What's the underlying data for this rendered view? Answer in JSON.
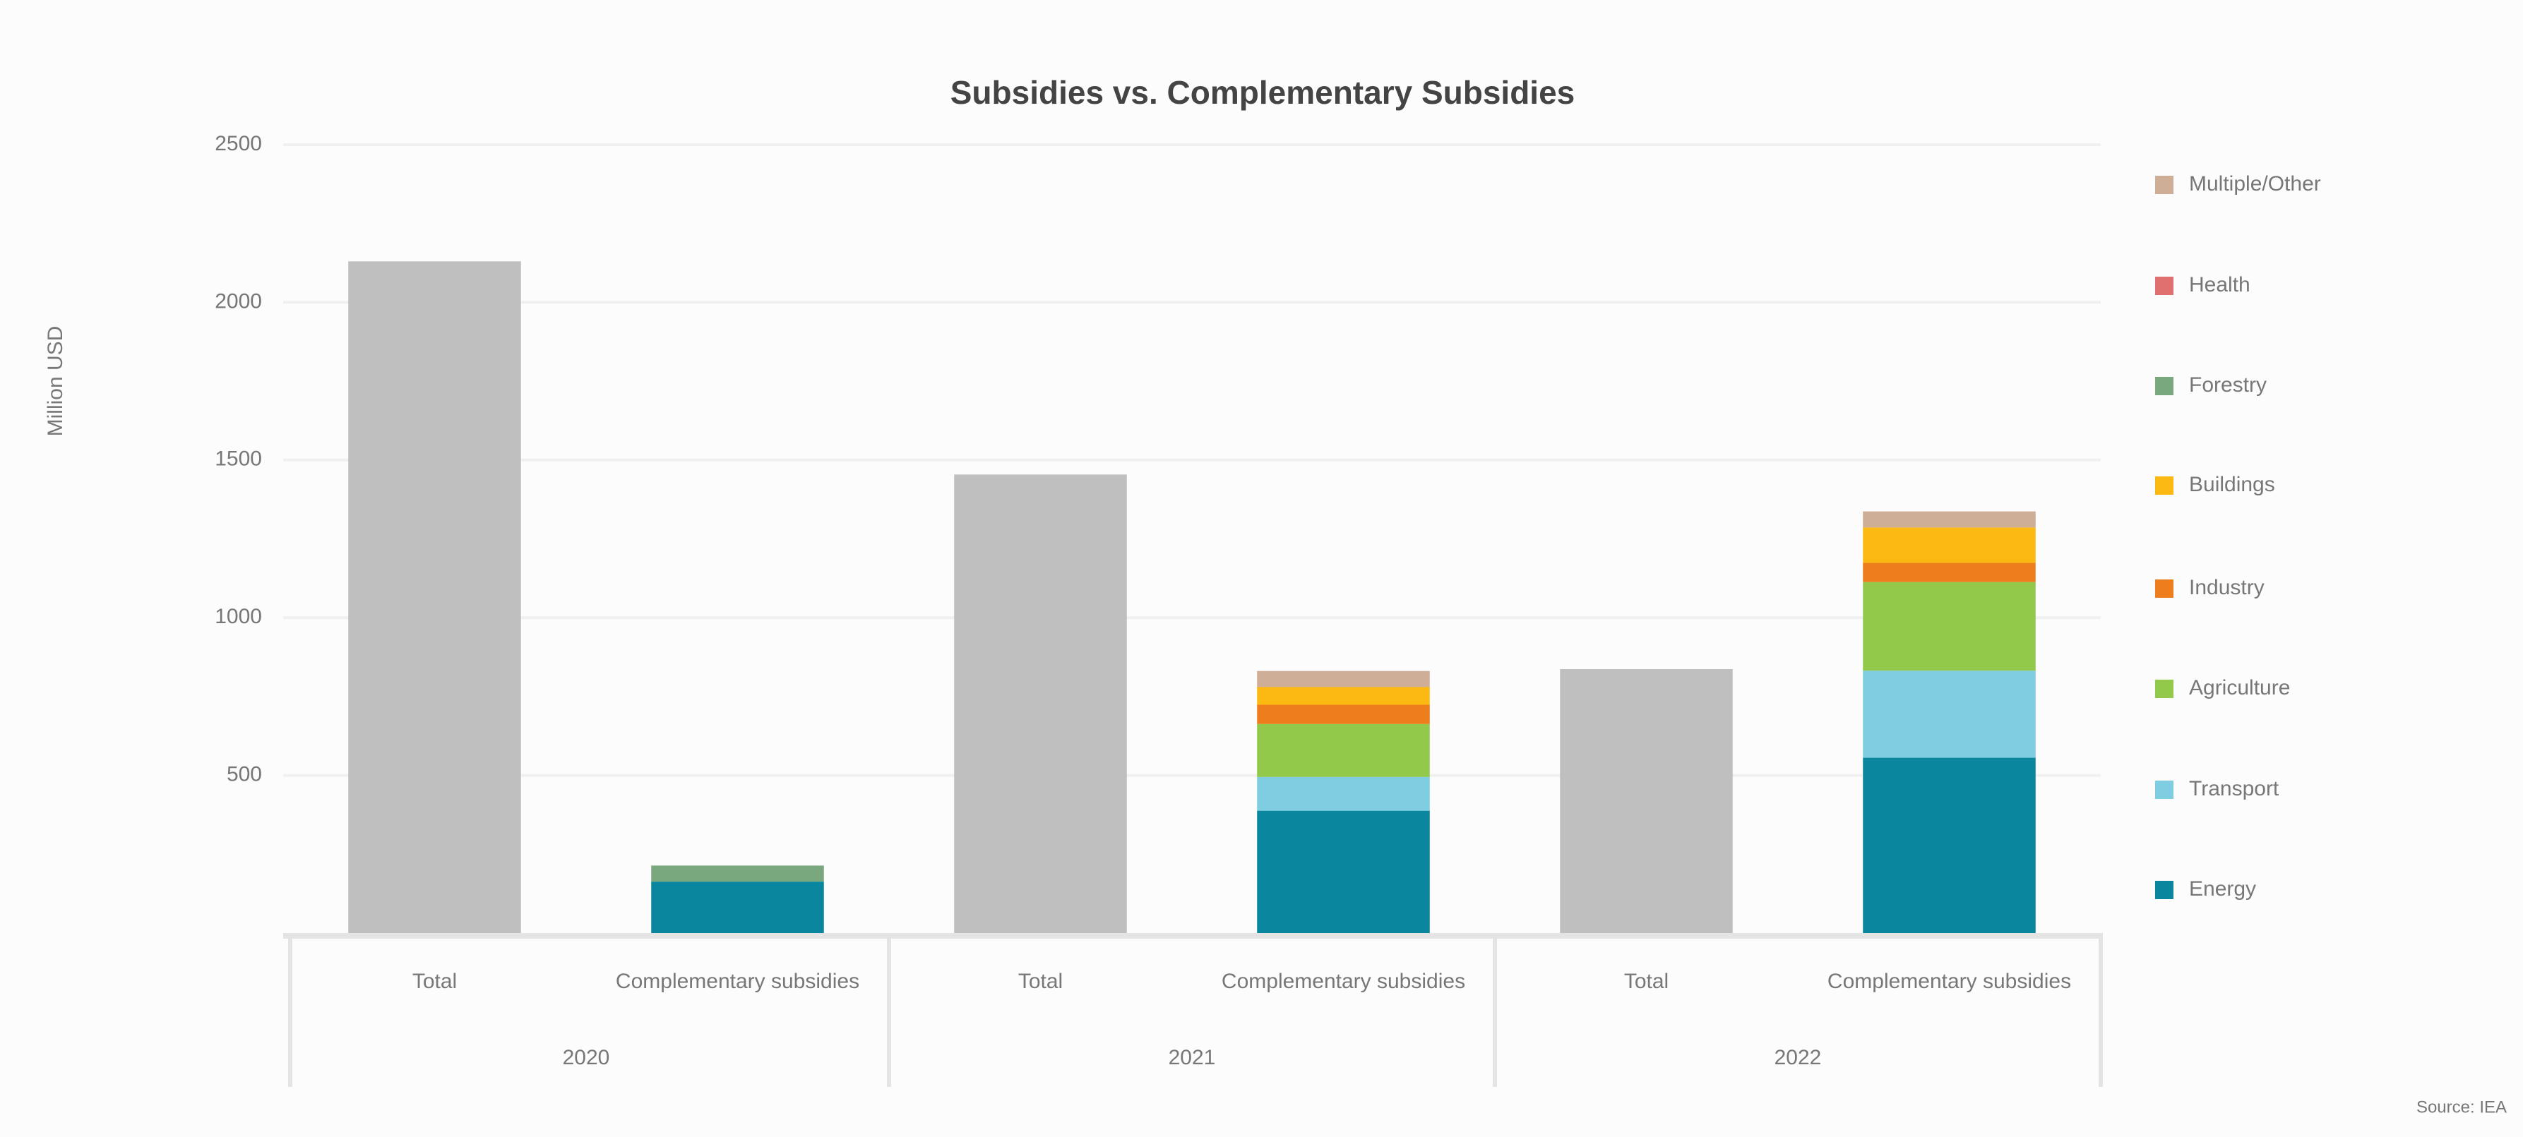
{
  "chart_data": {
    "type": "stacked_bar",
    "title": "Subsidies vs. Complementary Subsidies",
    "y_label": "Million USD",
    "source": "Source: IEA",
    "groups": [
      "2020",
      "2021",
      "2022"
    ],
    "categories": [
      "Total",
      "Complementary subsidies",
      "Total",
      "Complementary subsidies",
      "Total",
      "Complementary subsidies"
    ],
    "total_color": "#bfbfbf",
    "total_values": [
      2130,
      null,
      1454,
      null,
      837,
      null
    ],
    "series": [
      {
        "name": "Energy",
        "color": "#0a879f",
        "values": [
          null,
          163,
          null,
          388,
          null,
          556
        ]
      },
      {
        "name": "Transport",
        "color": "#7ecde0",
        "values": [
          null,
          null,
          null,
          107,
          null,
          276
        ]
      },
      {
        "name": "Agriculture",
        "color": "#93c94b",
        "values": [
          null,
          null,
          null,
          168,
          null,
          281
        ]
      },
      {
        "name": "Industry",
        "color": "#ee7d1c",
        "values": [
          null,
          null,
          null,
          61,
          null,
          61
        ]
      },
      {
        "name": "Buildings",
        "color": "#fbb912",
        "values": [
          null,
          null,
          null,
          56,
          null,
          112
        ]
      },
      {
        "name": "Forestry",
        "color": "#7aa87e",
        "values": [
          null,
          51,
          null,
          null,
          null,
          null
        ]
      },
      {
        "name": "Health",
        "color": "#e07070",
        "values": [
          null,
          null,
          null,
          null,
          null,
          null
        ]
      },
      {
        "name": "Multiple/Other",
        "color": "#cfae97",
        "values": [
          null,
          null,
          null,
          51,
          null,
          51
        ]
      }
    ],
    "ylim": [
      0,
      2500
    ],
    "yticks": [
      500,
      1000,
      1500,
      2000,
      2500
    ],
    "grid": true
  }
}
